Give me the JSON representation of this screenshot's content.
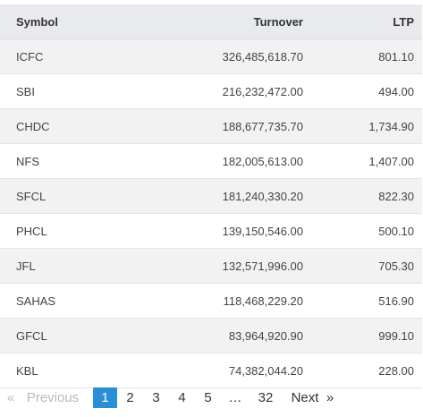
{
  "table": {
    "headers": {
      "symbol": "Symbol",
      "turnover": "Turnover",
      "ltp": "LTP"
    },
    "rows": [
      {
        "symbol": "ICFC",
        "turnover": "326,485,618.70",
        "ltp": "801.10"
      },
      {
        "symbol": "SBI",
        "turnover": "216,232,472.00",
        "ltp": "494.00"
      },
      {
        "symbol": "CHDC",
        "turnover": "188,677,735.70",
        "ltp": "1,734.90"
      },
      {
        "symbol": "NFS",
        "turnover": "182,005,613.00",
        "ltp": "1,407.00"
      },
      {
        "symbol": "SFCL",
        "turnover": "181,240,330.20",
        "ltp": "822.30"
      },
      {
        "symbol": "PHCL",
        "turnover": "139,150,546.00",
        "ltp": "500.10"
      },
      {
        "symbol": "JFL",
        "turnover": "132,571,996.00",
        "ltp": "705.30"
      },
      {
        "symbol": "SAHAS",
        "turnover": "118,468,229.20",
        "ltp": "516.90"
      },
      {
        "symbol": "GFCL",
        "turnover": "83,964,920.90",
        "ltp": "999.10"
      },
      {
        "symbol": "KBL",
        "turnover": "74,382,044.20",
        "ltp": "228.00"
      }
    ]
  },
  "pagination": {
    "prev_arrow": "«",
    "prev_label": "Previous",
    "pages": [
      "1",
      "2",
      "3",
      "4",
      "5"
    ],
    "current_page": "1",
    "ellipsis": "…",
    "last_page": "32",
    "next_label": "Next",
    "next_arrow": "»",
    "colors": {
      "current_bg": "#2b8fd6",
      "disabled_text": "#b9b9b9"
    }
  }
}
